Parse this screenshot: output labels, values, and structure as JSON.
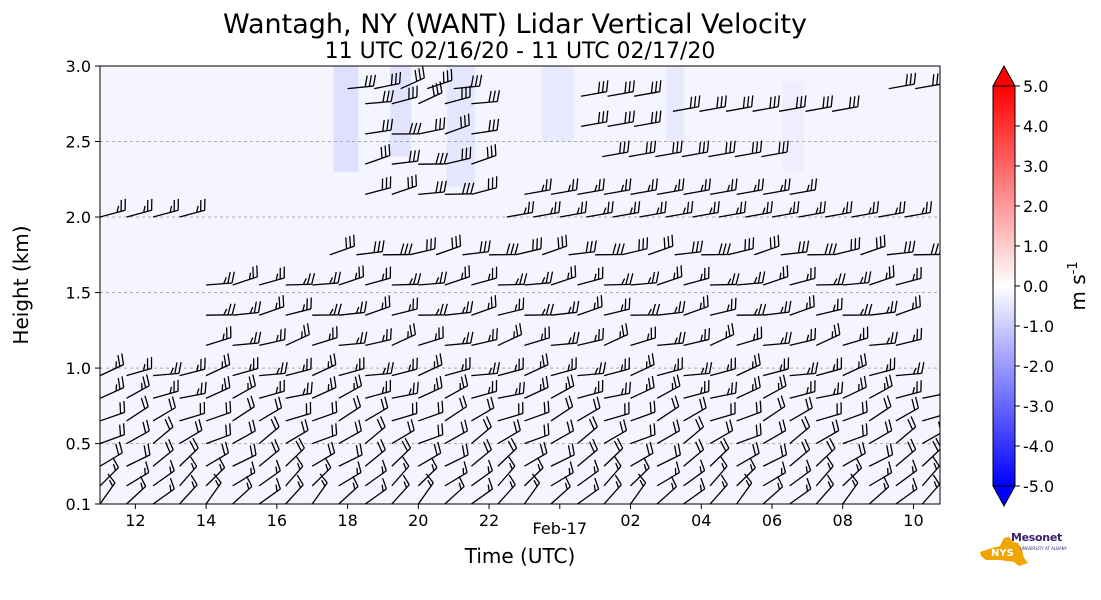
{
  "chart_data": {
    "type": "heatmap",
    "title": "Wantagh, NY (WANT) Lidar Vertical Velocity",
    "subtitle": "11 UTC 02/16/20 - 11 UTC 02/17/20",
    "xlabel": "Time (UTC)",
    "ylabel": "Height (km)",
    "x_range": [
      "2020-02-16T11:00",
      "2020-02-17T10:45"
    ],
    "ylim": [
      0.1,
      3.0
    ],
    "x_ticks": [
      "12",
      "14",
      "16",
      "18",
      "20",
      "22",
      "Feb-17",
      "02",
      "04",
      "06",
      "08",
      "10"
    ],
    "y_ticks": [
      "0.1",
      "0.5",
      "1.0",
      "1.5",
      "2.0",
      "2.5",
      "3.0"
    ],
    "grid": "horizontal dashed",
    "colorbar": {
      "label": "m s",
      "label_superscript": "-1",
      "ticks": [
        "5.0",
        "4.0",
        "3.0",
        "2.0",
        "1.0",
        "0.0",
        "-1.0",
        "-2.0",
        "-3.0",
        "-4.0",
        "-5.0"
      ],
      "range": [
        -5.0,
        5.0
      ],
      "colors": [
        "#0000ff",
        "#ffffff",
        "#ff0000"
      ]
    },
    "background_value": -0.2,
    "downdraft_patches": [
      {
        "t": [
          17.6,
          18.3
        ],
        "h": [
          2.3,
          3.0
        ],
        "w": -0.8
      },
      {
        "t": [
          19.2,
          19.8
        ],
        "h": [
          2.4,
          3.0
        ],
        "w": -0.7
      },
      {
        "t": [
          20.8,
          21.6
        ],
        "h": [
          2.2,
          3.0
        ],
        "w": -0.6
      },
      {
        "t": [
          23.5,
          24.4
        ],
        "h": [
          2.5,
          3.0
        ],
        "w": -0.5
      },
      {
        "t": [
          27.0,
          27.5
        ],
        "h": [
          2.5,
          3.0
        ],
        "w": -0.5
      },
      {
        "t": [
          30.3,
          30.9
        ],
        "h": [
          2.3,
          2.9
        ],
        "w": -0.4
      }
    ],
    "overlay": "wind barbs (knots) and vertical velocity contours",
    "barb_layers": [
      {
        "h": 2.85,
        "t": [
          18.0,
          21.5
        ],
        "wspd": 30,
        "wdir": 255
      },
      {
        "h": 2.75,
        "t": [
          18.5,
          21.5
        ],
        "wspd": 30,
        "wdir": 255
      },
      {
        "h": 2.55,
        "t": [
          18.5,
          21.5
        ],
        "wspd": 30,
        "wdir": 260
      },
      {
        "h": 2.35,
        "t": [
          18.5,
          21.5
        ],
        "wspd": 30,
        "wdir": 260
      },
      {
        "h": 2.15,
        "t": [
          18.5,
          21.5
        ],
        "wspd": 30,
        "wdir": 260
      },
      {
        "h": 1.75,
        "t": [
          17.5,
          34.0
        ],
        "wspd": 30,
        "wdir": 260
      },
      {
        "h": 1.55,
        "t": [
          14.0,
          34.0
        ],
        "wspd": 25,
        "wdir": 260
      },
      {
        "h": 1.35,
        "t": [
          14.0,
          34.0
        ],
        "wspd": 25,
        "wdir": 260
      },
      {
        "h": 1.15,
        "t": [
          14.0,
          34.0
        ],
        "wspd": 25,
        "wdir": 255
      },
      {
        "h": 0.95,
        "t": [
          11.0,
          34.0
        ],
        "wspd": 25,
        "wdir": 255
      },
      {
        "h": 0.8,
        "t": [
          11.0,
          34.5
        ],
        "wspd": 25,
        "wdir": 250
      },
      {
        "h": 0.65,
        "t": [
          11.0,
          34.5
        ],
        "wspd": 20,
        "wdir": 245
      },
      {
        "h": 0.5,
        "t": [
          11.0,
          34.5
        ],
        "wspd": 20,
        "wdir": 240
      },
      {
        "h": 0.35,
        "t": [
          11.0,
          34.5
        ],
        "wspd": 20,
        "wdir": 235
      },
      {
        "h": 0.22,
        "t": [
          11.0,
          34.5
        ],
        "wspd": 15,
        "wdir": 230
      },
      {
        "h": 0.1,
        "t": [
          11.0,
          34.5
        ],
        "wspd": 15,
        "wdir": 225
      }
    ],
    "upper_barb_segments": [
      {
        "h": 2.8,
        "t": [
          24.6,
          26.1
        ],
        "wspd": 30,
        "wdir": 260
      },
      {
        "h": 2.6,
        "t": [
          24.6,
          26.1
        ],
        "wspd": 30,
        "wdir": 260
      },
      {
        "h": 2.4,
        "t": [
          25.2,
          30.2
        ],
        "wspd": 30,
        "wdir": 260
      },
      {
        "h": 2.15,
        "t": [
          23.0,
          31.0
        ],
        "wspd": 25,
        "wdir": 260
      },
      {
        "h": 2.0,
        "t": [
          11.0,
          13.4
        ],
        "wspd": 25,
        "wdir": 255
      },
      {
        "h": 2.0,
        "t": [
          22.5,
          34.0
        ],
        "wspd": 25,
        "wdir": 260
      },
      {
        "h": 2.85,
        "t": [
          33.3,
          34.3
        ],
        "wspd": 30,
        "wdir": 260
      },
      {
        "h": 2.7,
        "t": [
          27.2,
          32.0
        ],
        "wspd": 30,
        "wdir": 260
      }
    ]
  },
  "logo": {
    "name": "NYS Mesonet logo",
    "text": "Mesonet",
    "subtext": "UNIVERSITY AT ALBANY",
    "state_color": "#f0a500",
    "text_color": "#3b1f6e"
  }
}
